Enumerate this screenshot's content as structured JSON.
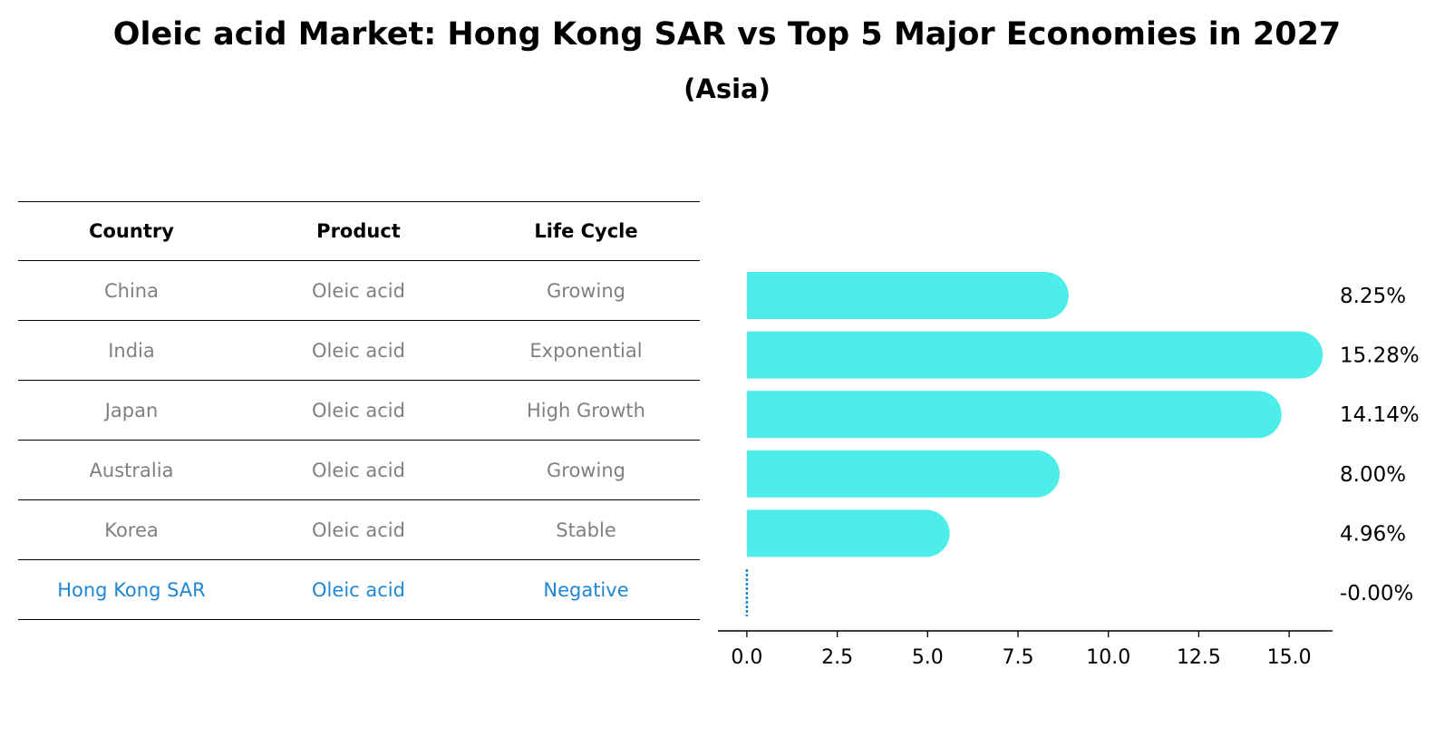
{
  "title": "Oleic acid Market: Hong Kong SAR vs Top 5 Major Economies in 2027",
  "subtitle": "(Asia)",
  "table": {
    "headers": [
      "Country",
      "Product",
      "Life Cycle"
    ],
    "rows": [
      {
        "country": "China",
        "product": "Oleic acid",
        "life_cycle": "Growing"
      },
      {
        "country": "India",
        "product": "Oleic acid",
        "life_cycle": "Exponential"
      },
      {
        "country": "Japan",
        "product": "Oleic acid",
        "life_cycle": "High Growth"
      },
      {
        "country": "Australia",
        "product": "Oleic acid",
        "life_cycle": "Growing"
      },
      {
        "country": "Korea",
        "product": "Oleic acid",
        "life_cycle": "Stable"
      },
      {
        "country": "Hong Kong SAR",
        "product": "Oleic acid",
        "life_cycle": "Negative"
      }
    ]
  },
  "colors": {
    "bar": "#4deeea",
    "highlight": "#1f86d1",
    "muted_text": "#808080"
  },
  "chart_data": {
    "type": "bar",
    "orientation": "horizontal",
    "categories": [
      "China",
      "India",
      "Japan",
      "Australia",
      "Korea",
      "Hong Kong SAR"
    ],
    "values": [
      8.25,
      15.28,
      14.14,
      8.0,
      4.96,
      -0.0
    ],
    "value_labels": [
      "8.25%",
      "15.28%",
      "14.14%",
      "8.00%",
      "4.96%",
      "-0.00%"
    ],
    "xlim": [
      -0.8,
      16.2
    ],
    "xticks": [
      0.0,
      2.5,
      5.0,
      7.5,
      10.0,
      12.5,
      15.0
    ],
    "xtick_labels": [
      "0.0",
      "2.5",
      "5.0",
      "7.5",
      "10.0",
      "12.5",
      "15.0"
    ],
    "grid": false,
    "legend": "none"
  }
}
